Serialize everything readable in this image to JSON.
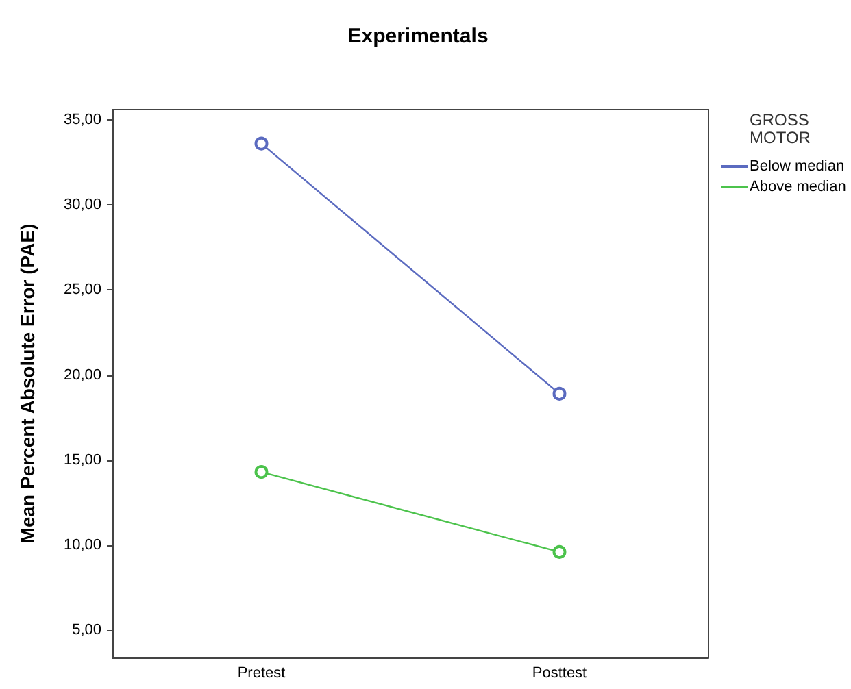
{
  "chart_data": {
    "type": "line",
    "title": "Experimentals",
    "ylabel": "Mean Percent Absolute Error (PAE)",
    "legend_title": "GROSS MOTOR",
    "legend": "right",
    "marker": "circle",
    "grid": false,
    "categories": [
      "Pretest",
      "Posttest"
    ],
    "series": [
      {
        "name": "Below median",
        "color": "#5b6bc0",
        "values": [
          33.6,
          18.9
        ]
      },
      {
        "name": "Above median",
        "color": "#4cc34c",
        "values": [
          14.3,
          9.6
        ]
      }
    ],
    "ylim": [
      3.4,
      35.6
    ],
    "yticks": [
      {
        "value": 5,
        "label": "5,00"
      },
      {
        "value": 10,
        "label": "10,00"
      },
      {
        "value": 15,
        "label": "15,00"
      },
      {
        "value": 20,
        "label": "20,00"
      },
      {
        "value": 25,
        "label": "25,00"
      },
      {
        "value": 30,
        "label": "30,00"
      },
      {
        "value": 35,
        "label": "35,00"
      }
    ]
  }
}
